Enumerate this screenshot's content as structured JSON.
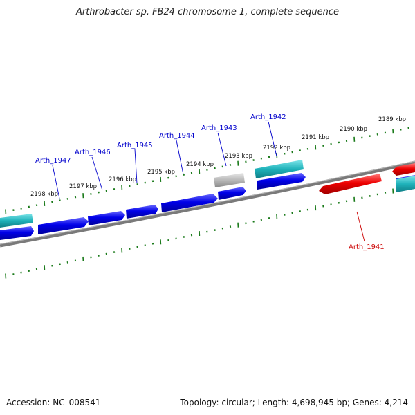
{
  "header": {
    "title": "Arthrobacter sp. FB24 chromosome 1, complete sequence"
  },
  "footer": {
    "accession": "Accession: NC_008541",
    "summary": "Topology: circular; Length: 4,698,945 bp; Genes: 4,214"
  },
  "scale_labels": [
    "2189 kbp",
    "2190 kbp",
    "2191 kbp",
    "2192 kbp",
    "2193 kbp",
    "2194 kbp",
    "2195 kbp",
    "2196 kbp",
    "2197 kbp",
    "2198 kbp"
  ],
  "gene_labels": [
    {
      "text": "Arth_1942",
      "color": "#0000cc"
    },
    {
      "text": "Arth_1943",
      "color": "#0000cc"
    },
    {
      "text": "Arth_1944",
      "color": "#0000cc"
    },
    {
      "text": "Arth_1945",
      "color": "#0000cc"
    },
    {
      "text": "Arth_1946",
      "color": "#0000cc"
    },
    {
      "text": "Arth_1947",
      "color": "#0000cc"
    },
    {
      "text": "Arth_1941",
      "color": "#cc0000"
    }
  ],
  "colors": {
    "forward_gene": "#0000e0",
    "reverse_gene": "#ee0000",
    "cyan_feature": "#20b8c0",
    "gray_feature": "#b0b0b0",
    "backbone": "#777777",
    "tick": "#1a7a1a"
  }
}
